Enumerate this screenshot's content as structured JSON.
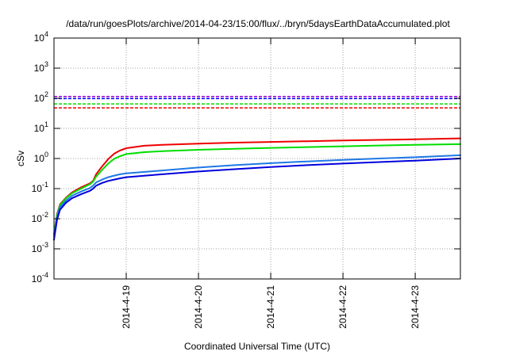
{
  "chart_data": {
    "type": "line",
    "title": "/data/run/goesPlots/archive/2014-04-23/15:00/flux/../bryn/5daysEarthDataAccumulated.plot",
    "xlabel": "Coordinated Universal Time (UTC)",
    "ylabel": "cSv",
    "yscale": "log",
    "ylim": [
      0.0001,
      10000
    ],
    "y_ticks": [
      {
        "base": "10",
        "exp": "-4",
        "value": 0.0001
      },
      {
        "base": "10",
        "exp": "-3",
        "value": 0.001
      },
      {
        "base": "10",
        "exp": "-2",
        "value": 0.01
      },
      {
        "base": "10",
        "exp": "-1",
        "value": 0.1
      },
      {
        "base": "10",
        "exp": "0",
        "value": 1
      },
      {
        "base": "10",
        "exp": "1",
        "value": 10
      },
      {
        "base": "10",
        "exp": "2",
        "value": 100
      },
      {
        "base": "10",
        "exp": "3",
        "value": 1000
      },
      {
        "base": "10",
        "exp": "4",
        "value": 10000
      }
    ],
    "xlim": [
      "2014-04-18T00:00",
      "2014-04-23T15:00"
    ],
    "x_ticks": [
      {
        "label": "2014-4-19",
        "value": "2014-04-19T00:00"
      },
      {
        "label": "2014-4-20",
        "value": "2014-04-20T00:00"
      },
      {
        "label": "2014-4-21",
        "value": "2014-04-21T00:00"
      },
      {
        "label": "2014-4-22",
        "value": "2014-04-22T00:00"
      },
      {
        "label": "2014-4-23",
        "value": "2014-04-23T00:00"
      }
    ],
    "grid": true,
    "reference_lines": [
      {
        "color": "#9400d3",
        "y": 115
      },
      {
        "color": "#0000ff",
        "y": 98
      },
      {
        "color": "#00dd00",
        "y": 65
      },
      {
        "color": "#ee0000",
        "y": 48
      }
    ],
    "series": [
      {
        "color": "#ee0000",
        "points": [
          [
            "2014-04-18T00:00",
            0.003
          ],
          [
            "2014-04-18T01:00",
            0.014
          ],
          [
            "2014-04-18T02:00",
            0.03
          ],
          [
            "2014-04-18T04:00",
            0.05
          ],
          [
            "2014-04-18T06:00",
            0.075
          ],
          [
            "2014-04-18T09:00",
            0.11
          ],
          [
            "2014-04-18T12:00",
            0.15
          ],
          [
            "2014-04-18T13:00",
            0.18
          ],
          [
            "2014-04-18T14:00",
            0.3
          ],
          [
            "2014-04-18T16:00",
            0.55
          ],
          [
            "2014-04-18T18:00",
            0.95
          ],
          [
            "2014-04-18T20:00",
            1.45
          ],
          [
            "2014-04-18T22:00",
            1.85
          ],
          [
            "2014-04-19T00:00",
            2.2
          ],
          [
            "2014-04-19T06:00",
            2.65
          ],
          [
            "2014-04-19T12:00",
            2.85
          ],
          [
            "2014-04-20T00:00",
            3.1
          ],
          [
            "2014-04-20T12:00",
            3.35
          ],
          [
            "2014-04-21T00:00",
            3.55
          ],
          [
            "2014-04-21T12:00",
            3.75
          ],
          [
            "2014-04-22T00:00",
            3.95
          ],
          [
            "2014-04-22T12:00",
            4.15
          ],
          [
            "2014-04-23T00:00",
            4.35
          ],
          [
            "2014-04-23T15:00",
            4.65
          ]
        ]
      },
      {
        "color": "#00dd00",
        "points": [
          [
            "2014-04-18T00:00",
            0.003
          ],
          [
            "2014-04-18T01:00",
            0.013
          ],
          [
            "2014-04-18T02:00",
            0.028
          ],
          [
            "2014-04-18T04:00",
            0.048
          ],
          [
            "2014-04-18T06:00",
            0.07
          ],
          [
            "2014-04-18T09:00",
            0.1
          ],
          [
            "2014-04-18T12:00",
            0.14
          ],
          [
            "2014-04-18T13:00",
            0.17
          ],
          [
            "2014-04-18T14:00",
            0.25
          ],
          [
            "2014-04-18T16:00",
            0.42
          ],
          [
            "2014-04-18T18:00",
            0.68
          ],
          [
            "2014-04-18T20:00",
            0.98
          ],
          [
            "2014-04-18T22:00",
            1.2
          ],
          [
            "2014-04-19T00:00",
            1.4
          ],
          [
            "2014-04-19T06:00",
            1.62
          ],
          [
            "2014-04-19T12:00",
            1.75
          ],
          [
            "2014-04-20T00:00",
            1.95
          ],
          [
            "2014-04-20T12:00",
            2.1
          ],
          [
            "2014-04-21T00:00",
            2.25
          ],
          [
            "2014-04-21T12:00",
            2.4
          ],
          [
            "2014-04-22T00:00",
            2.55
          ],
          [
            "2014-04-22T12:00",
            2.7
          ],
          [
            "2014-04-23T00:00",
            2.85
          ],
          [
            "2014-04-23T15:00",
            3.0
          ]
        ]
      },
      {
        "color": "#1e78e6",
        "points": [
          [
            "2014-04-18T00:00",
            0.0025
          ],
          [
            "2014-04-18T01:00",
            0.011
          ],
          [
            "2014-04-18T02:00",
            0.024
          ],
          [
            "2014-04-18T04:00",
            0.04
          ],
          [
            "2014-04-18T06:00",
            0.058
          ],
          [
            "2014-04-18T09:00",
            0.08
          ],
          [
            "2014-04-18T12:00",
            0.105
          ],
          [
            "2014-04-18T13:00",
            0.125
          ],
          [
            "2014-04-18T14:00",
            0.16
          ],
          [
            "2014-04-18T16:00",
            0.2
          ],
          [
            "2014-04-18T18:00",
            0.24
          ],
          [
            "2014-04-18T20:00",
            0.27
          ],
          [
            "2014-04-18T22:00",
            0.3
          ],
          [
            "2014-04-19T00:00",
            0.32
          ],
          [
            "2014-04-19T12:00",
            0.4
          ],
          [
            "2014-04-20T00:00",
            0.5
          ],
          [
            "2014-04-20T12:00",
            0.6
          ],
          [
            "2014-04-21T00:00",
            0.7
          ],
          [
            "2014-04-21T12:00",
            0.8
          ],
          [
            "2014-04-22T00:00",
            0.9
          ],
          [
            "2014-04-22T12:00",
            1.0
          ],
          [
            "2014-04-23T00:00",
            1.1
          ],
          [
            "2014-04-23T15:00",
            1.28
          ]
        ]
      },
      {
        "color": "#0000dd",
        "points": [
          [
            "2014-04-18T00:00",
            0.002
          ],
          [
            "2014-04-18T01:00",
            0.009
          ],
          [
            "2014-04-18T02:00",
            0.02
          ],
          [
            "2014-04-18T04:00",
            0.034
          ],
          [
            "2014-04-18T06:00",
            0.048
          ],
          [
            "2014-04-18T09:00",
            0.065
          ],
          [
            "2014-04-18T12:00",
            0.085
          ],
          [
            "2014-04-18T13:00",
            0.1
          ],
          [
            "2014-04-18T14:00",
            0.125
          ],
          [
            "2014-04-18T16:00",
            0.155
          ],
          [
            "2014-04-18T18:00",
            0.18
          ],
          [
            "2014-04-18T20:00",
            0.2
          ],
          [
            "2014-04-18T22:00",
            0.22
          ],
          [
            "2014-04-19T00:00",
            0.24
          ],
          [
            "2014-04-19T12:00",
            0.3
          ],
          [
            "2014-04-20T00:00",
            0.37
          ],
          [
            "2014-04-20T12:00",
            0.44
          ],
          [
            "2014-04-21T00:00",
            0.52
          ],
          [
            "2014-04-21T12:00",
            0.6
          ],
          [
            "2014-04-22T00:00",
            0.68
          ],
          [
            "2014-04-22T12:00",
            0.76
          ],
          [
            "2014-04-23T00:00",
            0.85
          ],
          [
            "2014-04-23T15:00",
            1.0
          ]
        ]
      }
    ]
  }
}
